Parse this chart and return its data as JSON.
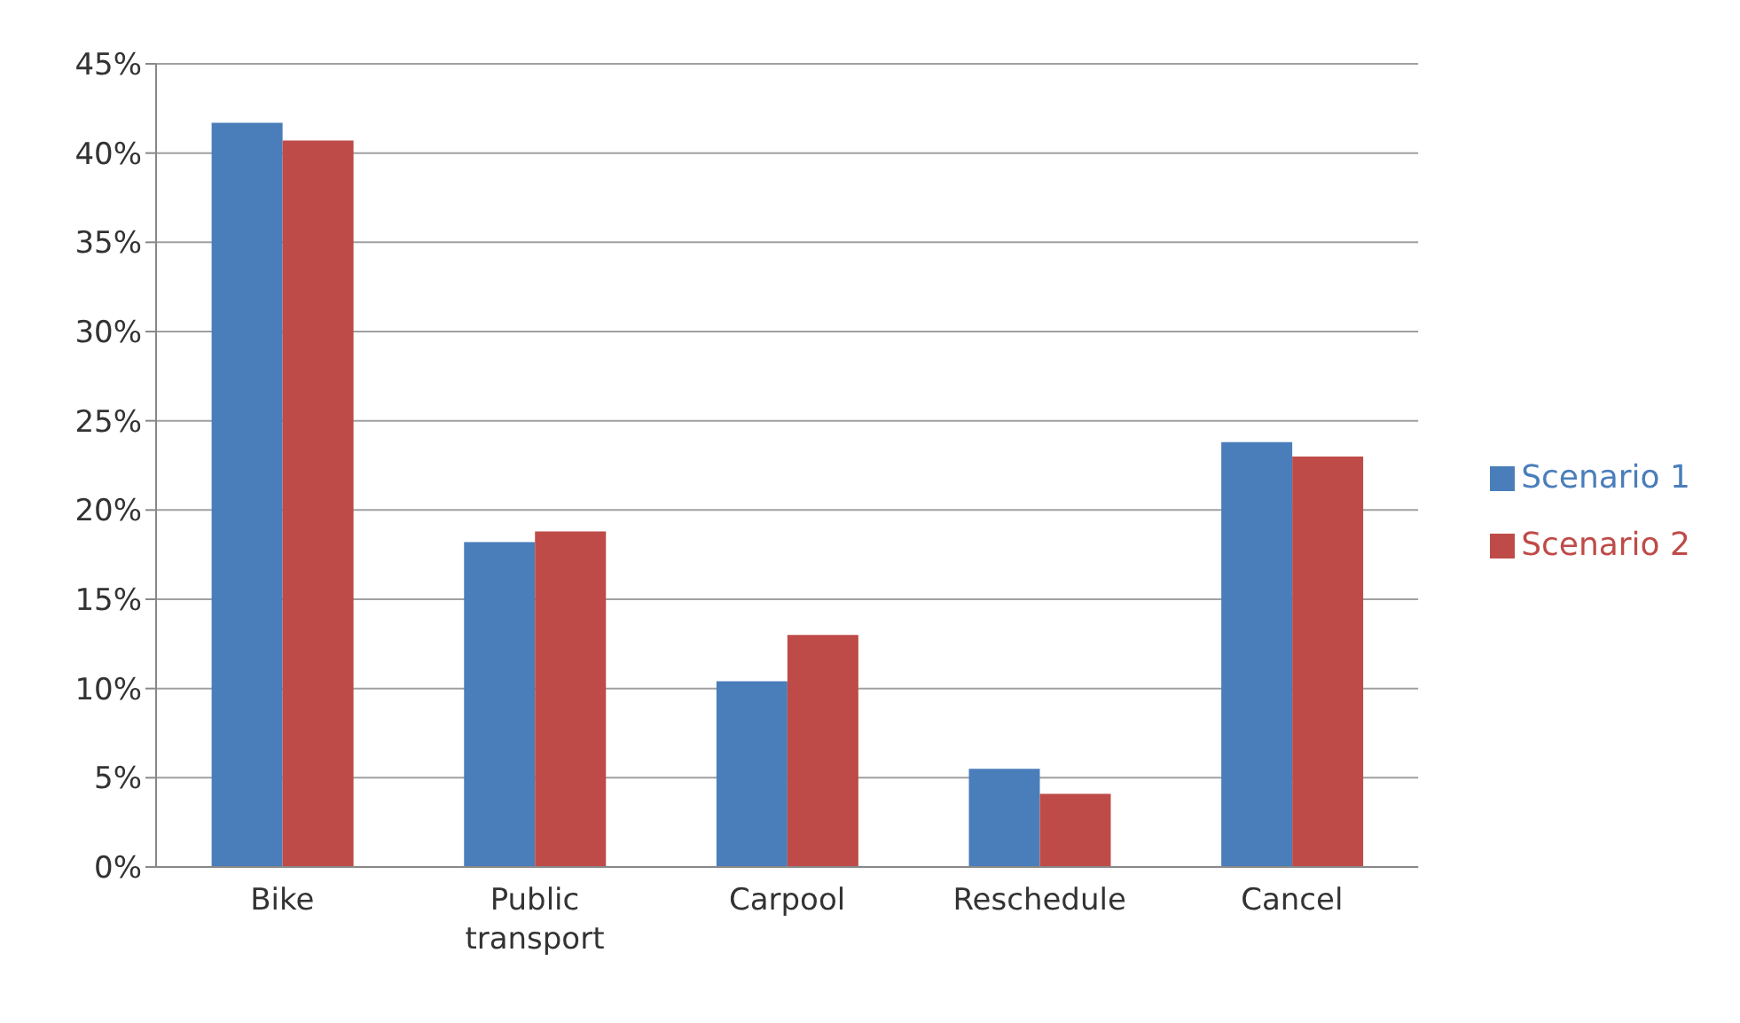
{
  "chart_data": {
    "type": "bar",
    "categories": [
      "Bike",
      "Public transport",
      "Carpool",
      "Reschedule",
      "Cancel"
    ],
    "series": [
      {
        "name": "Scenario 1",
        "color": "#4a7ebb",
        "values": [
          41.7,
          18.2,
          10.4,
          5.5,
          23.8
        ]
      },
      {
        "name": "Scenario 2",
        "color": "#be4b48",
        "values": [
          40.7,
          18.8,
          13.0,
          4.1,
          23.0
        ]
      }
    ],
    "ylim": [
      0,
      45
    ],
    "yticks": [
      {
        "value": 0,
        "label": "0%"
      },
      {
        "value": 5,
        "label": "5%"
      },
      {
        "value": 10,
        "label": "10%"
      },
      {
        "value": 15,
        "label": "15%"
      },
      {
        "value": 20,
        "label": "20%"
      },
      {
        "value": 25,
        "label": "25%"
      },
      {
        "value": 30,
        "label": "30%"
      },
      {
        "value": 35,
        "label": "35%"
      },
      {
        "value": 40,
        "label": "40%"
      },
      {
        "value": 45,
        "label": "45%"
      }
    ],
    "grid": "y",
    "legend": "right"
  }
}
